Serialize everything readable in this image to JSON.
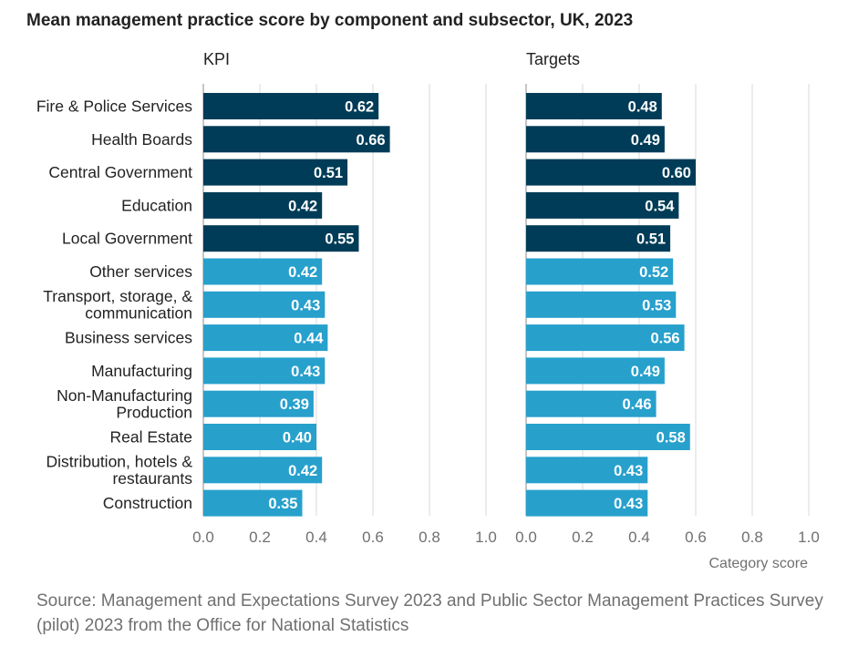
{
  "chart_data": {
    "type": "bar",
    "orientation": "horizontal",
    "title": "Mean management practice score by component and subsector, UK, 2023",
    "categories": [
      "Fire & Police Services",
      "Health Boards",
      "Central Government",
      "Education",
      "Local Government",
      "Other services",
      "Transport, storage, & communication",
      "Business services",
      "Manufacturing",
      "Non-Manufacturing Production",
      "Real Estate",
      "Distribution, hotels & restaurants",
      "Construction"
    ],
    "category_lines": [
      [
        "Fire & Police Services"
      ],
      [
        "Health Boards"
      ],
      [
        "Central Government"
      ],
      [
        "Education"
      ],
      [
        "Local Government"
      ],
      [
        "Other services"
      ],
      [
        "Transport, storage, &",
        "communication"
      ],
      [
        "Business services"
      ],
      [
        "Manufacturing"
      ],
      [
        "Non-Manufacturing",
        "Production"
      ],
      [
        "Real Estate"
      ],
      [
        "Distribution, hotels &",
        "restaurants"
      ],
      [
        "Construction"
      ]
    ],
    "panels": [
      {
        "name": "KPI",
        "values": [
          0.62,
          0.66,
          0.51,
          0.42,
          0.55,
          0.42,
          0.43,
          0.44,
          0.43,
          0.39,
          0.4,
          0.42,
          0.35
        ],
        "labels": [
          "0.62",
          "0.66",
          "0.51",
          "0.42",
          "0.55",
          "0.42",
          "0.43",
          "0.44",
          "0.43",
          "0.39",
          "0.40",
          "0.42",
          "0.35"
        ]
      },
      {
        "name": "Targets",
        "values": [
          0.48,
          0.49,
          0.6,
          0.54,
          0.51,
          0.52,
          0.53,
          0.56,
          0.49,
          0.46,
          0.58,
          0.43,
          0.43
        ],
        "labels": [
          "0.48",
          "0.49",
          "0.60",
          "0.54",
          "0.51",
          "0.52",
          "0.53",
          "0.56",
          "0.49",
          "0.46",
          "0.58",
          "0.43",
          "0.43"
        ]
      }
    ],
    "public_sector_count": 5,
    "xlim": [
      0,
      1
    ],
    "xticks": [
      "0.0",
      "0.2",
      "0.4",
      "0.6",
      "0.8",
      "1.0"
    ],
    "xlabel": "Category score",
    "ylabel": "",
    "grid": true,
    "legend": "none",
    "colors": {
      "public_sector": "#003c57",
      "private_sector": "#27a0cc",
      "grid": "#d9d9d9",
      "axis": "#b3b3b3",
      "tick_text": "#707070",
      "bar_label": "#ffffff",
      "category_text": "#222222"
    }
  },
  "source": "Source: Management and Expectations Survey 2023 and Public Sector Management Practices Survey (pilot) 2023 from the Office for National Statistics"
}
